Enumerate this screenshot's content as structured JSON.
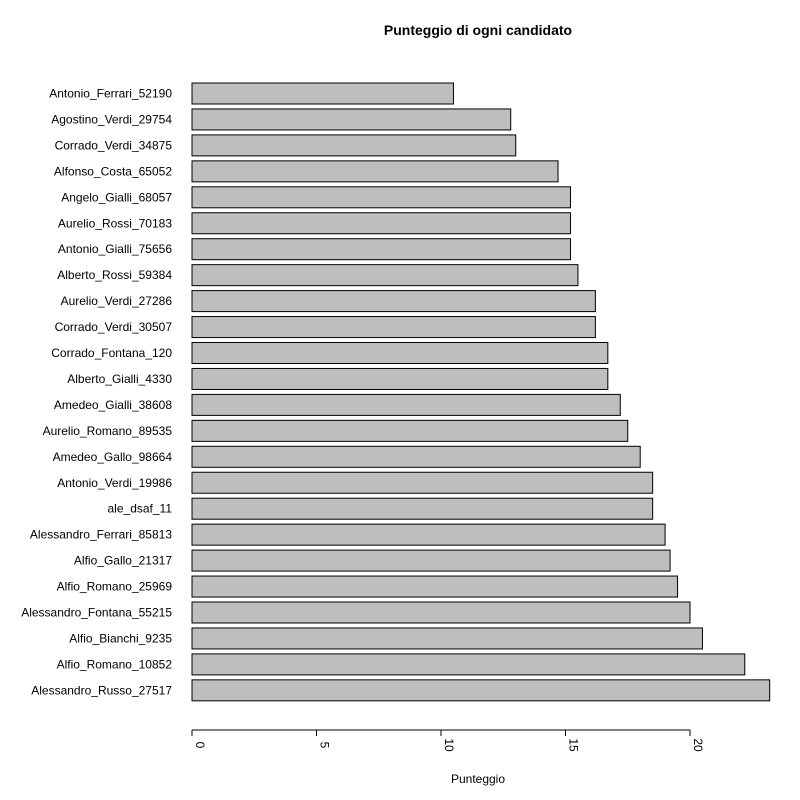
{
  "chart_data": {
    "type": "bar",
    "orientation": "horizontal",
    "title": "Punteggio di ogni candidato",
    "xlabel": "Punteggio",
    "ylabel": "",
    "xlim": [
      0,
      23.3
    ],
    "x_ticks": [
      "0",
      "5",
      "10",
      "15",
      "20"
    ],
    "x_tick_values": [
      0,
      5,
      10,
      15,
      20
    ],
    "bar_color": "#bebebe",
    "border_color": "#000000",
    "grid": false,
    "legend": "none",
    "categories": [
      "Antonio_Ferrari_52190",
      "Agostino_Verdi_29754",
      "Corrado_Verdi_34875",
      "Alfonso_Costa_65052",
      "Angelo_Gialli_68057",
      "Aurelio_Rossi_70183",
      "Antonio_Gialli_75656",
      "Alberto_Rossi_59384",
      "Aurelio_Verdi_27286",
      "Corrado_Verdi_30507",
      "Corrado_Fontana_120",
      "Alberto_Gialli_4330",
      "Amedeo_Gialli_38608",
      "Aurelio_Romano_89535",
      "Amedeo_Gallo_98664",
      "Antonio_Verdi_19986",
      "ale_dsaf_11",
      "Alessandro_Ferrari_85813",
      "Alfio_Gallo_21317",
      "Alfio_Romano_25969",
      "Alessandro_Fontana_55215",
      "Alfio_Bianchi_9235",
      "Alfio_Romano_10852",
      "Alessandro_Russo_27517"
    ],
    "values": [
      10.5,
      12.8,
      13.0,
      14.7,
      15.2,
      15.2,
      15.2,
      15.5,
      16.2,
      16.2,
      16.7,
      16.7,
      17.2,
      17.5,
      18.0,
      18.5,
      18.5,
      19.0,
      19.2,
      19.5,
      20.0,
      20.5,
      22.2,
      23.2
    ]
  }
}
